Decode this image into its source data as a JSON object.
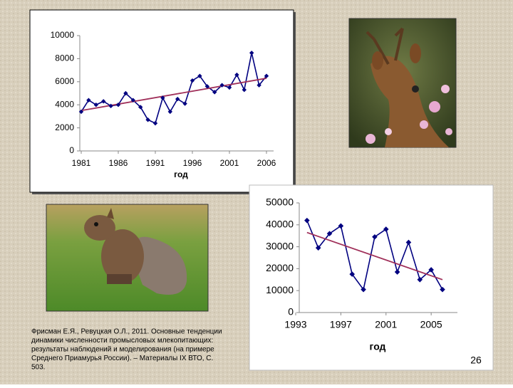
{
  "chart_data": [
    {
      "type": "line",
      "xlabel": "год",
      "x": [
        1981,
        1982,
        1983,
        1984,
        1985,
        1986,
        1987,
        1988,
        1989,
        1990,
        1991,
        1992,
        1993,
        1994,
        1995,
        1996,
        1997,
        1998,
        1999,
        2000,
        2001,
        2002,
        2003,
        2004,
        2005,
        2006
      ],
      "series": [
        {
          "color": "#000080",
          "values": [
            3400,
            4400,
            4000,
            4300,
            3900,
            4000,
            5000,
            4400,
            3800,
            2700,
            2400,
            4600,
            3400,
            4500,
            4100,
            6100,
            6500,
            5600,
            5100,
            5700,
            5500,
            6600,
            5300,
            8500,
            5700,
            6500
          ]
        }
      ],
      "trend": {
        "x": [
          1981,
          2006
        ],
        "values": [
          3500,
          6300
        ],
        "color": "#a0305a"
      },
      "xlim": [
        1981,
        2006
      ],
      "xticks": [
        1981,
        1986,
        1991,
        1996,
        2001,
        2006
      ],
      "ylim": [
        0,
        10000
      ],
      "yticks": [
        0,
        2000,
        4000,
        6000,
        8000,
        10000
      ]
    },
    {
      "type": "line",
      "xlabel": "год",
      "x": [
        1994,
        1995,
        1996,
        1997,
        1998,
        1999,
        2000,
        2001,
        2002,
        2003,
        2004,
        2005,
        2006
      ],
      "series": [
        {
          "color": "#000080",
          "values": [
            42000,
            29500,
            36000,
            39500,
            17500,
            10500,
            34500,
            38000,
            18500,
            32000,
            15000,
            19500,
            10500
          ]
        }
      ],
      "trend": {
        "x": [
          1994,
          2006
        ],
        "values": [
          36500,
          15000
        ],
        "color": "#a0305a"
      },
      "xlim": [
        1993,
        2006
      ],
      "xticks": [
        1993,
        1997,
        2001,
        2005
      ],
      "ylim": [
        0,
        50000
      ],
      "yticks": [
        0,
        10000,
        20000,
        30000,
        40000,
        50000
      ]
    }
  ],
  "citation": [
    "Фрисман Е.Я., Ревуцкая О.Л., 2011. Основные тенденции",
    "динамики численности промысловых млекопитающих:",
    "результаты наблюдений и моделирования (на примере",
    "Среднего Приамурья России). – Материалы IX ВТО, С.",
    "503."
  ],
  "page_number": "26"
}
